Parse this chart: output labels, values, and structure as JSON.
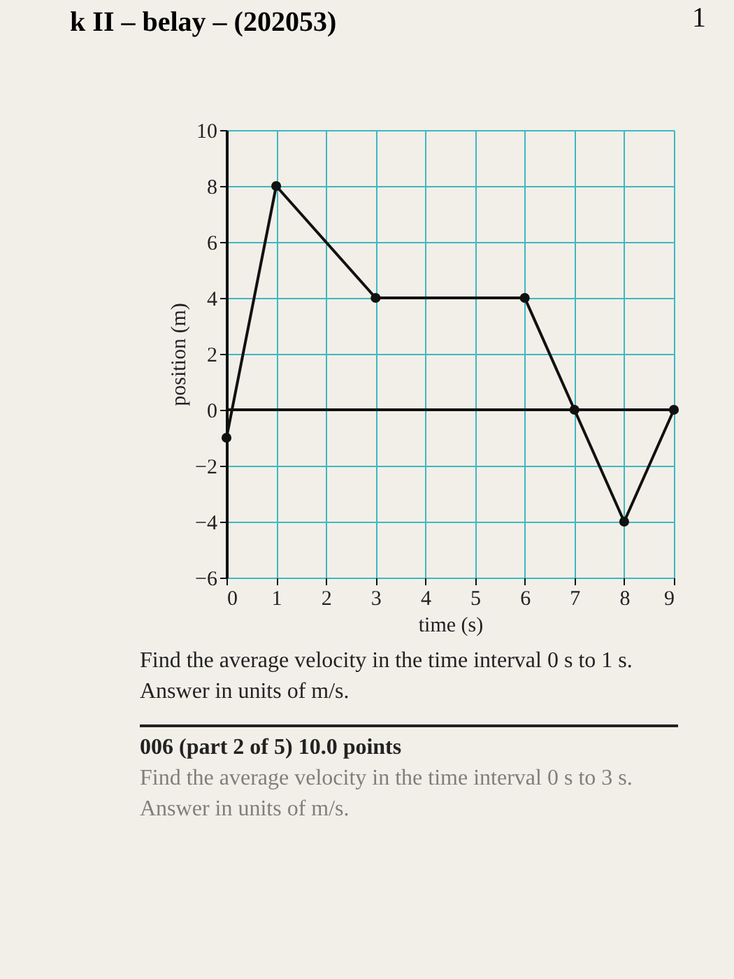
{
  "chart_data": {
    "type": "line",
    "title": "k II – belay – (202053)",
    "xlabel": "time (s)",
    "ylabel": "position (m)",
    "x": [
      0,
      1,
      3,
      6,
      7,
      8,
      9
    ],
    "series": [
      {
        "color": "#111111",
        "values": [
          -1,
          8,
          4,
          4,
          0,
          -4,
          0
        ]
      }
    ],
    "xlim": [
      0,
      9
    ],
    "xticks": [
      0,
      1,
      2,
      3,
      4,
      5,
      6,
      7,
      8,
      9
    ],
    "ylim": [
      -6,
      10
    ],
    "yticks": [
      -6,
      -4,
      -2,
      0,
      2,
      4,
      6,
      8,
      10
    ],
    "grid": true,
    "marker": "circle",
    "line_style": "solid",
    "ref_lines": [
      {
        "axis": "y",
        "value": 0,
        "color": "#111111"
      }
    ],
    "annotations": [
      "1",
      "Find the average velocity in the time interval 0 s to 1 s.",
      "Answer in units of  m/s.",
      "006 (part 2 of 5) 10.0 points",
      "Find the average velocity in the time interval 0 s to 3 s.",
      "Answer in units of  m/s."
    ]
  }
}
